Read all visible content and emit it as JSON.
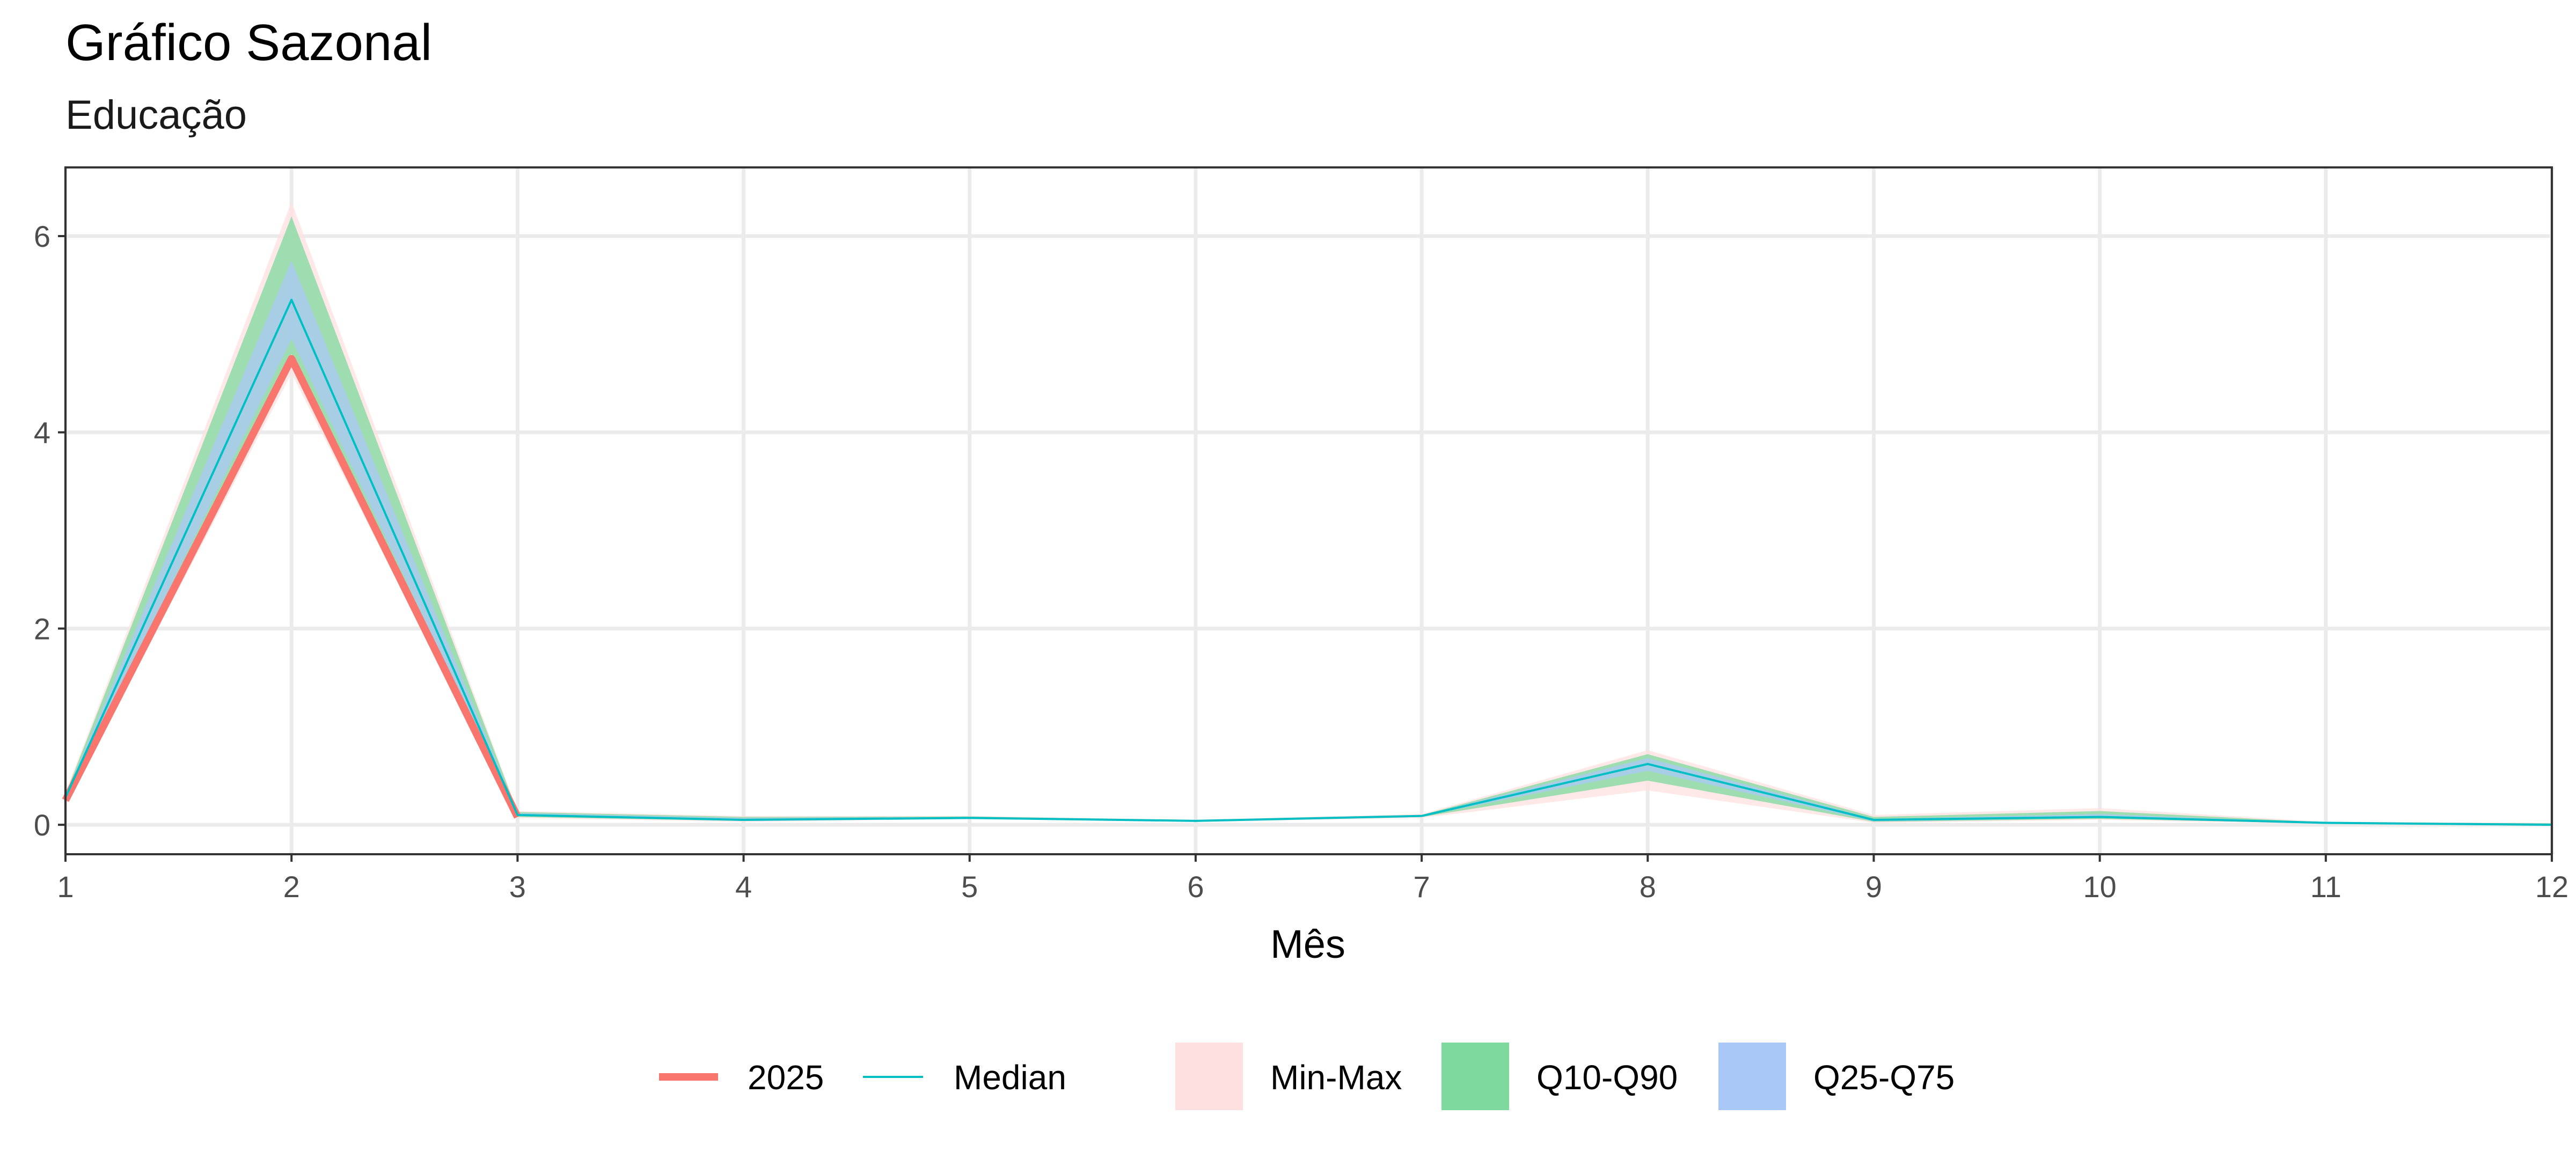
{
  "chart_data": {
    "type": "line",
    "title": "Gráfico Sazonal",
    "subtitle": "Educação",
    "xlabel": "Mês",
    "ylabel": "",
    "xlim": [
      1,
      12
    ],
    "ylim": [
      -0.3,
      6.7
    ],
    "x_ticks": [
      1,
      2,
      3,
      4,
      5,
      6,
      7,
      8,
      9,
      10,
      11,
      12
    ],
    "y_ticks": [
      0,
      2,
      4,
      6
    ],
    "x": [
      1,
      2,
      3,
      4,
      5,
      6,
      7,
      8,
      9,
      10,
      11,
      12
    ],
    "series": [
      {
        "name": "2025",
        "color": "#F8766D",
        "values": [
          0.25,
          4.75,
          0.08,
          null,
          null,
          null,
          null,
          null,
          null,
          null,
          null,
          null
        ]
      },
      {
        "name": "Median",
        "color": "#00BFC4",
        "values": [
          0.28,
          5.35,
          0.1,
          0.05,
          0.07,
          0.04,
          0.09,
          0.62,
          0.05,
          0.08,
          0.02,
          0.0
        ]
      }
    ],
    "bands": [
      {
        "name": "Min-Max",
        "color": "#FFE0E0",
        "lower": [
          0.2,
          4.6,
          0.07,
          0.03,
          0.06,
          0.03,
          0.07,
          0.35,
          0.02,
          0.05,
          0.01,
          -0.01
        ],
        "upper": [
          0.33,
          6.35,
          0.14,
          0.09,
          0.09,
          0.05,
          0.11,
          0.76,
          0.1,
          0.17,
          0.03,
          0.02
        ]
      },
      {
        "name": "Q10-Q90",
        "color": "#7ED99E",
        "lower": [
          0.22,
          4.8,
          0.08,
          0.04,
          0.065,
          0.035,
          0.08,
          0.45,
          0.03,
          0.06,
          0.015,
          -0.005
        ],
        "upper": [
          0.31,
          6.2,
          0.13,
          0.08,
          0.085,
          0.045,
          0.1,
          0.72,
          0.08,
          0.14,
          0.025,
          0.015
        ]
      },
      {
        "name": "Q25-Q75",
        "color": "#A9C8F7",
        "lower": [
          0.24,
          4.95,
          0.09,
          0.045,
          0.068,
          0.038,
          0.085,
          0.55,
          0.035,
          0.07,
          0.018,
          0.0
        ],
        "upper": [
          0.3,
          5.75,
          0.12,
          0.07,
          0.08,
          0.042,
          0.095,
          0.68,
          0.06,
          0.11,
          0.022,
          0.01
        ]
      }
    ],
    "grid": true,
    "legend_position": "bottom"
  }
}
